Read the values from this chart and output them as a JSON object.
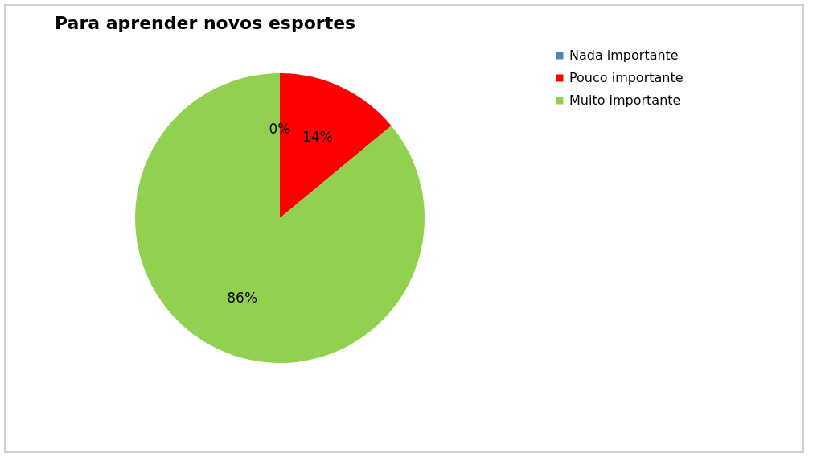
{
  "chart_data": {
    "type": "pie",
    "title": "Para aprender novos esportes",
    "categories": [
      "Nada importante",
      "Pouco importante",
      "Muito importante"
    ],
    "values": [
      0,
      14,
      86
    ],
    "colors": [
      "#4f81bd",
      "#ff0000",
      "#92d050"
    ],
    "value_labels": [
      "0%",
      "14%",
      "86%"
    ],
    "legend": "right"
  }
}
